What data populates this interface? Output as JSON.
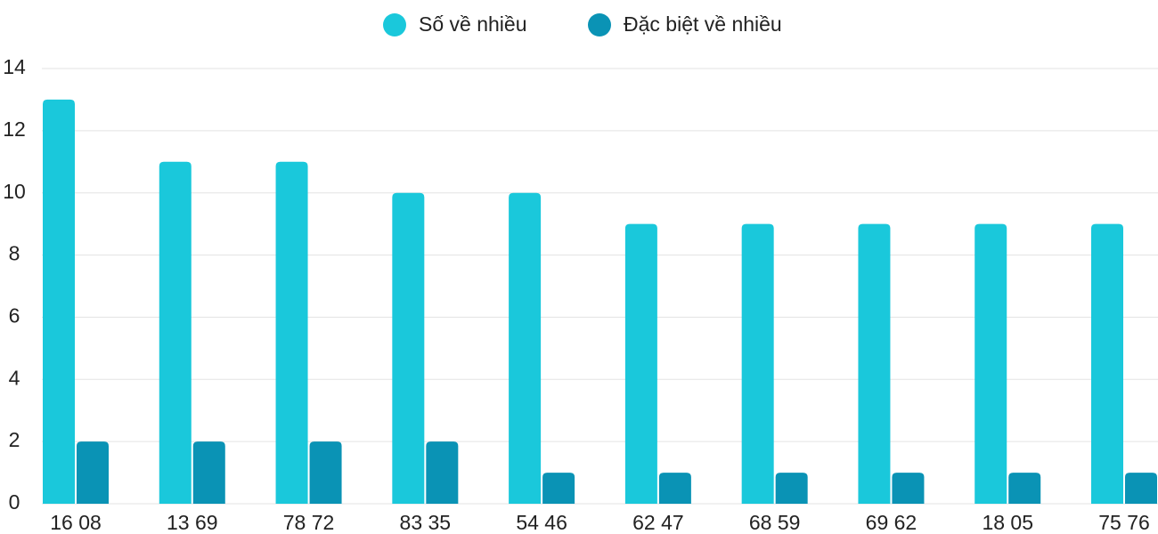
{
  "chart_data": {
    "type": "bar",
    "categories": [
      "16 08",
      "13 69",
      "78 72",
      "83 35",
      "54 46",
      "62 47",
      "68 59",
      "69 62",
      "18 05",
      "75 76"
    ],
    "series": [
      {
        "name": "Số về nhiều",
        "color": "#1ac8db",
        "values": [
          13,
          11,
          11,
          10,
          10,
          9,
          9,
          9,
          9,
          9
        ]
      },
      {
        "name": "Đặc biệt về nhiều",
        "color": "#0a93b5",
        "values": [
          2,
          2,
          2,
          2,
          1,
          1,
          1,
          1,
          1,
          1
        ]
      }
    ],
    "ylim": [
      0,
      14
    ],
    "yticks": [
      0,
      2,
      4,
      6,
      8,
      10,
      12,
      14
    ],
    "grid": true,
    "legend": "top"
  }
}
